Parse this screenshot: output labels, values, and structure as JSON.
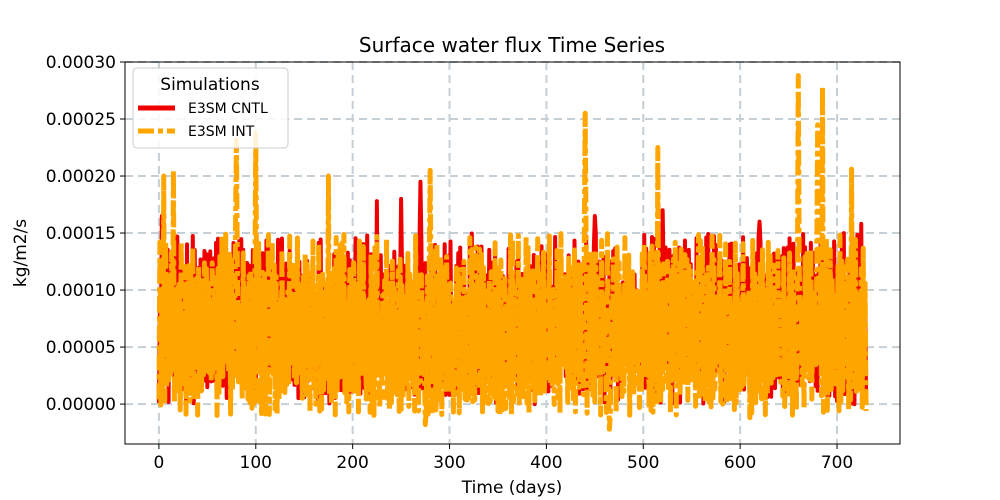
{
  "chart_data": {
    "type": "line",
    "title": "Surface water flux Time Series",
    "xlabel": "Time (days)",
    "ylabel": "kg/m2/s",
    "xlim": [
      -35,
      765
    ],
    "ylim": [
      -3.5e-05,
      0.0003
    ],
    "x_ticks": [
      0,
      100,
      200,
      300,
      400,
      500,
      600,
      700
    ],
    "x_tick_labels": [
      "0",
      "100",
      "200",
      "300",
      "400",
      "500",
      "600",
      "700"
    ],
    "y_ticks": [
      0.0,
      5e-05,
      0.0001,
      0.00015,
      0.0002,
      0.00025,
      0.0003
    ],
    "y_tick_labels": [
      "0.00000",
      "0.00005",
      "0.00010",
      "0.00015",
      "0.00020",
      "0.00025",
      "0.00030"
    ],
    "grid": true,
    "legend": {
      "title": "Simulations",
      "placement": "top-left"
    },
    "series": [
      {
        "name": "E3SM CNTL",
        "color": "#ee0000",
        "line_style": "solid",
        "x_range": [
          0,
          730
        ],
        "typical_range": [
          0.0,
          0.00015
        ],
        "peaks": [
          {
            "x": 3,
            "y": 0.000165
          },
          {
            "x": 225,
            "y": 0.000178
          },
          {
            "x": 250,
            "y": 0.00018
          },
          {
            "x": 270,
            "y": 0.000195
          },
          {
            "x": 450,
            "y": 0.000165
          },
          {
            "x": 520,
            "y": 0.00017
          },
          {
            "x": 620,
            "y": 0.00016
          },
          {
            "x": 725,
            "y": 0.000158
          }
        ]
      },
      {
        "name": "E3SM INT",
        "color": "#ffa500",
        "line_style": "dashed",
        "x_range": [
          0,
          730
        ],
        "typical_range": [
          -1e-05,
          0.00015
        ],
        "peaks": [
          {
            "x": 5,
            "y": 0.0002
          },
          {
            "x": 15,
            "y": 0.000205
          },
          {
            "x": 80,
            "y": 0.000232
          },
          {
            "x": 100,
            "y": 0.000238
          },
          {
            "x": 175,
            "y": 0.0002
          },
          {
            "x": 280,
            "y": 0.000205
          },
          {
            "x": 440,
            "y": 0.000255
          },
          {
            "x": 515,
            "y": 0.000225
          },
          {
            "x": 660,
            "y": 0.000288
          },
          {
            "x": 680,
            "y": 0.000245
          },
          {
            "x": 685,
            "y": 0.000278
          },
          {
            "x": 715,
            "y": 0.000206
          }
        ],
        "troughs": [
          {
            "x": 60,
            "y": -1e-05
          },
          {
            "x": 275,
            "y": -1.8e-05
          },
          {
            "x": 465,
            "y": -2.2e-05
          },
          {
            "x": 610,
            "y": -1.2e-05
          }
        ]
      }
    ]
  }
}
